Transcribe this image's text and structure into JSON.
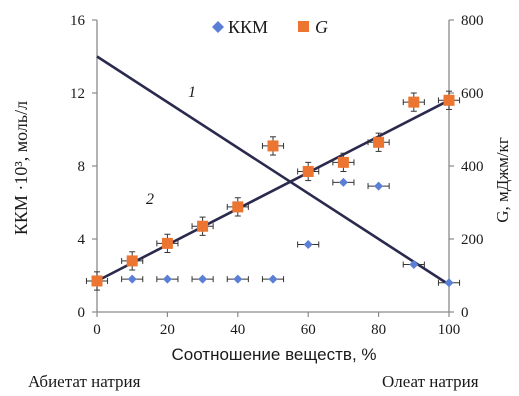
{
  "chart_data": {
    "type": "scatter",
    "title": "",
    "xlabel": "Соотношение веществ, %",
    "ylabel_left": "ККМ ·10³, моль/л",
    "ylabel_right": "G, мДжм/кг",
    "xlim": [
      0,
      100
    ],
    "ylim_left": [
      0,
      16
    ],
    "ylim_right": [
      0,
      800
    ],
    "x_ticks": [
      "0",
      "20",
      "40",
      "60",
      "80",
      "100"
    ],
    "y_ticks_left": [
      "0",
      "4",
      "8",
      "12",
      "16"
    ],
    "y_ticks_right": [
      "0",
      "200",
      "400",
      "600",
      "800"
    ],
    "grid": false,
    "legend_position": "top-center",
    "series": [
      {
        "name": "ККМ",
        "axis": "left",
        "color": "#5b7fd6",
        "marker": "diamond",
        "x": [
          10,
          20,
          30,
          40,
          50,
          60,
          70,
          80,
          90,
          100
        ],
        "y": [
          1.8,
          1.8,
          1.8,
          1.8,
          1.8,
          3.7,
          7.1,
          6.9,
          2.6,
          1.6
        ],
        "x_err": 3
      },
      {
        "name": "G",
        "axis": "right",
        "color": "#ec7532",
        "marker": "square",
        "x": [
          0,
          10,
          20,
          30,
          40,
          50,
          60,
          70,
          80,
          90,
          100
        ],
        "y": [
          85,
          140,
          188,
          235,
          288,
          455,
          385,
          410,
          465,
          575,
          580
        ],
        "x_err": 3,
        "y_err": 25
      }
    ],
    "trend_lines": [
      {
        "label": "1",
        "axis": "left",
        "x": [
          0,
          100
        ],
        "y": [
          14.0,
          1.5
        ],
        "color": "#2a2a4e"
      },
      {
        "label": "2",
        "axis": "right",
        "x": [
          0,
          100
        ],
        "y": [
          85,
          580
        ],
        "color": "#2a2a4e"
      }
    ],
    "annotations": [
      "Абиетат натрия",
      "Олеат натрия"
    ]
  }
}
